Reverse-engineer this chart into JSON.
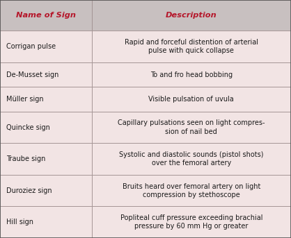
{
  "header": [
    "Name of Sign",
    "Description"
  ],
  "header_color": "#b5162a",
  "header_bg": "#c8c0c0",
  "row_bg": "#f2e4e4",
  "border_color": "#a09090",
  "text_color": "#1a1a1a",
  "fig_bg": "#f2e4e4",
  "outer_border_color": "#555555",
  "rows": [
    [
      "Corrigan pulse",
      "Rapid and forceful distention of arterial\npulse with quick collapse"
    ],
    [
      "De-Musset sign",
      "To and fro head bobbing"
    ],
    [
      "Müller sign",
      "Visible pulsation of uvula"
    ],
    [
      "Quincke sign",
      "Capillary pulsations seen on light compres-\nsion of nail bed"
    ],
    [
      "Traube sign",
      "Systolic and diastolic sounds (pistol shots)\nover the femoral artery"
    ],
    [
      "Duroziez sign",
      "Bruits heard over femoral artery on light\ncompression by stethoscope"
    ],
    [
      "Hill sign",
      "Popliteal cuff pressure exceeding brachial\npressure by 60 mm Hg or greater"
    ]
  ],
  "col_split": 0.315,
  "figsize": [
    4.18,
    3.43
  ],
  "dpi": 100,
  "font_size": 7.0,
  "header_font_size": 8.2
}
